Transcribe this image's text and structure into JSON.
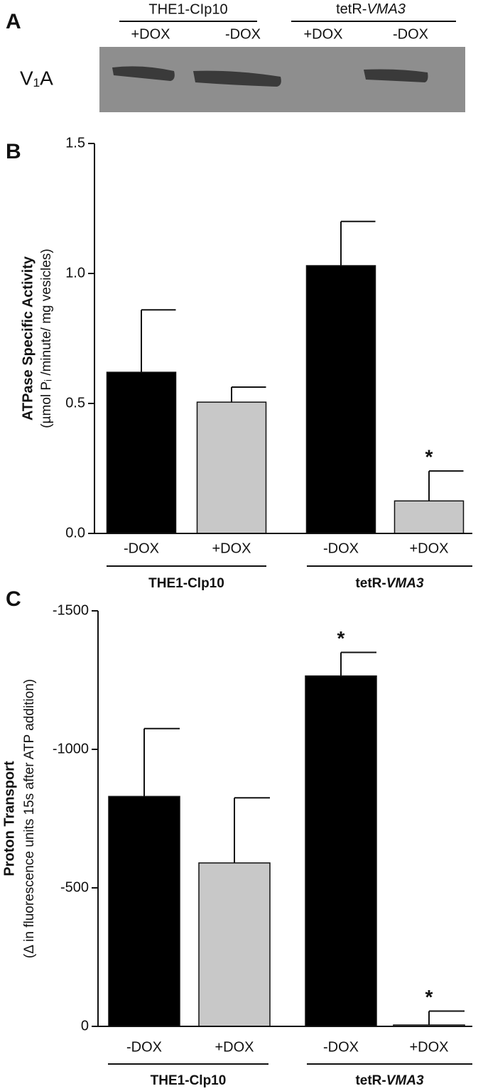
{
  "panel_a": {
    "label": "A",
    "protein": "V₁A",
    "groups": [
      {
        "text": "THE1-CIp10"
      },
      {
        "text": "tetR-",
        "italic": "VMA3"
      }
    ],
    "lanes": [
      "+DOX",
      "-DOX",
      "+DOX",
      "-DOX"
    ]
  },
  "chart_data": [
    {
      "type": "bar",
      "panel": "B",
      "ylabel": "ATPase Specific Activity",
      "ylabel2": "(µmol Pᵢ /minute/ mg vesicles)",
      "categories": [
        "-DOX",
        "+DOX",
        "-DOX",
        "+DOX"
      ],
      "groups": [
        {
          "text": "THE1-Clp10"
        },
        {
          "text": "tetR-",
          "italic": "VMA3"
        }
      ],
      "values": [
        0.62,
        0.505,
        1.03,
        0.125
      ],
      "errors": [
        0.24,
        0.058,
        0.17,
        0.115
      ],
      "colors": [
        "#000000",
        "#c8c8c8",
        "#000000",
        "#c8c8c8"
      ],
      "annotations": [
        {
          "index": 3,
          "text": "*"
        }
      ],
      "ylim": [
        0,
        1.5
      ],
      "yticks": [
        {
          "value": 0,
          "label": "0.0"
        },
        0.5,
        {
          "value": 1,
          "label": "1.0"
        },
        1.5
      ]
    },
    {
      "type": "bar",
      "panel": "C",
      "ylabel": "Proton Transport",
      "ylabel2": "(Δ in fluorescence units 15s after ATP addition)",
      "categories": [
        "-DOX",
        "+DOX",
        "-DOX",
        "+DOX"
      ],
      "groups": [
        {
          "text": "THE1-Clp10"
        },
        {
          "text": "tetR-",
          "italic": "VMA3"
        }
      ],
      "values": [
        -830,
        -590,
        -1265,
        -5
      ],
      "errors": [
        245,
        235,
        85,
        50
      ],
      "colors": [
        "#000000",
        "#c8c8c8",
        "#000000",
        "#c8c8c8"
      ],
      "annotations": [
        {
          "index": 2,
          "text": "*"
        },
        {
          "index": 3,
          "text": "*"
        }
      ],
      "ylim": [
        0,
        -1500
      ],
      "yticks": [
        0,
        -500,
        -1000,
        -1500
      ]
    }
  ]
}
